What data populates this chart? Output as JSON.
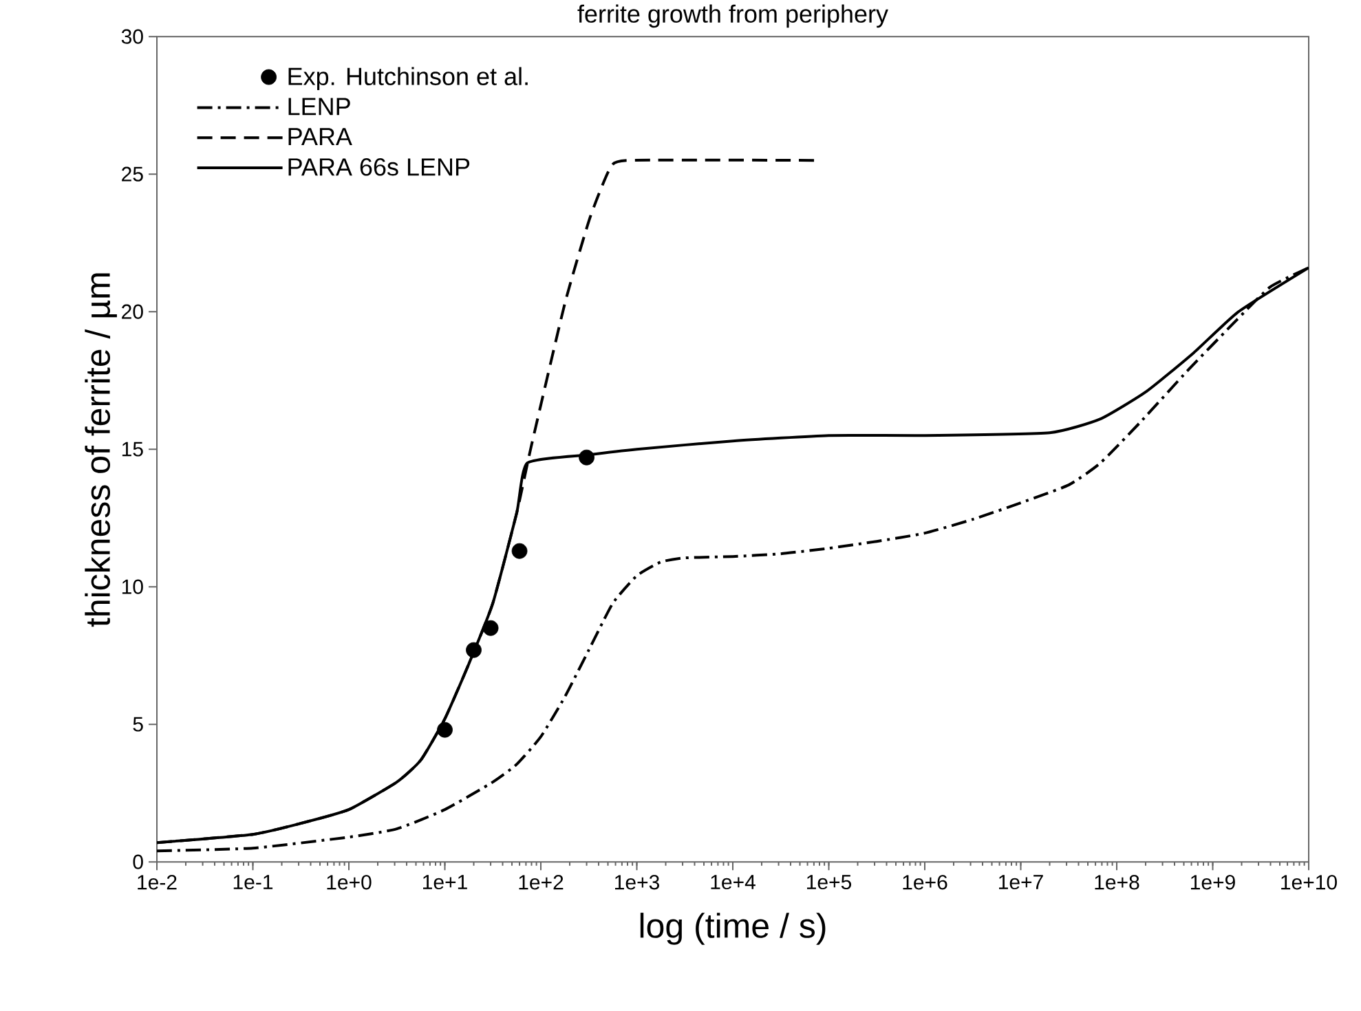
{
  "chart_data": {
    "type": "line",
    "title": "ferrite growth from periphery",
    "xlabel": "log (time / s)",
    "ylabel": "thickness of ferrite / µm",
    "log": "x",
    "xlim": [
      0.01,
      10000000000.0
    ],
    "ylim": [
      0,
      30
    ],
    "xticks": [
      {
        "value": 0.01,
        "label": "1e-2"
      },
      {
        "value": 0.1,
        "label": "1e-1"
      },
      {
        "value": 1,
        "label": "1e+0"
      },
      {
        "value": 10,
        "label": "1e+1"
      },
      {
        "value": 100,
        "label": "1e+2"
      },
      {
        "value": 1000,
        "label": "1e+3"
      },
      {
        "value": 10000,
        "label": "1e+4"
      },
      {
        "value": 100000,
        "label": "1e+5"
      },
      {
        "value": 1000000,
        "label": "1e+6"
      },
      {
        "value": 10000000,
        "label": "1e+7"
      },
      {
        "value": 100000000,
        "label": "1e+8"
      },
      {
        "value": 1000000000,
        "label": "1e+9"
      },
      {
        "value": 10000000000,
        "label": "1e+10"
      }
    ],
    "yticks": [
      0,
      5,
      10,
      15,
      20,
      25,
      30
    ],
    "grid": false,
    "legend": "top left",
    "series": [
      {
        "name": "Exp. Hutchinson et al.",
        "type": "scatter",
        "color": "#000000",
        "x": [
          10,
          20,
          30,
          60,
          300
        ],
        "values": [
          4.8,
          7.7,
          8.5,
          11.3,
          14.7
        ]
      },
      {
        "name": "LENP",
        "line_style": "dashdot",
        "color": "#000000",
        "x": [
          0.01,
          0.1,
          1,
          3.16,
          10,
          31.6,
          56.2,
          100,
          178,
          316,
          562,
          1000,
          1780,
          3160,
          10000,
          31600,
          100000,
          316000,
          1000000,
          3160000,
          10000000,
          31600000,
          67600000,
          178000000,
          562000000,
          1780000000,
          3980000000,
          10000000000
        ],
        "values": [
          0.4,
          0.5,
          0.9,
          1.2,
          1.9,
          2.9,
          3.55,
          4.55,
          6.0,
          7.7,
          9.4,
          10.4,
          10.9,
          11.05,
          11.1,
          11.2,
          11.4,
          11.65,
          11.95,
          12.45,
          13.05,
          13.7,
          14.5,
          16.0,
          17.9,
          19.7,
          20.9,
          21.6
        ]
      },
      {
        "name": "PARA",
        "line_style": "dashed",
        "color": "#000000",
        "x": [
          0.01,
          0.1,
          0.316,
          1,
          3.16,
          5.62,
          10,
          17.8,
          31.6,
          56.2,
          79.4,
          178,
          324,
          525,
          832,
          80000
        ],
        "values": [
          0.7,
          1.0,
          1.4,
          1.9,
          2.9,
          3.7,
          5.2,
          7.2,
          9.4,
          12.7,
          15.1,
          20.3,
          23.4,
          25.2,
          25.5,
          25.5
        ]
      },
      {
        "name": "PARA 66s LENP",
        "line_style": "solid",
        "color": "#000000",
        "x": [
          0.01,
          0.1,
          0.316,
          1,
          3.16,
          5.62,
          10,
          17.8,
          31.6,
          56.2,
          72.4,
          316,
          1000,
          10000,
          100000,
          1000000,
          20000000,
          67600000,
          204000000,
          631000000,
          1860000000,
          10000000000
        ],
        "values": [
          0.7,
          1.0,
          1.4,
          1.9,
          2.9,
          3.7,
          5.2,
          7.2,
          9.4,
          12.7,
          14.5,
          14.8,
          15.0,
          15.3,
          15.5,
          15.5,
          15.6,
          16.1,
          17.1,
          18.5,
          20.0,
          21.6
        ]
      }
    ]
  }
}
